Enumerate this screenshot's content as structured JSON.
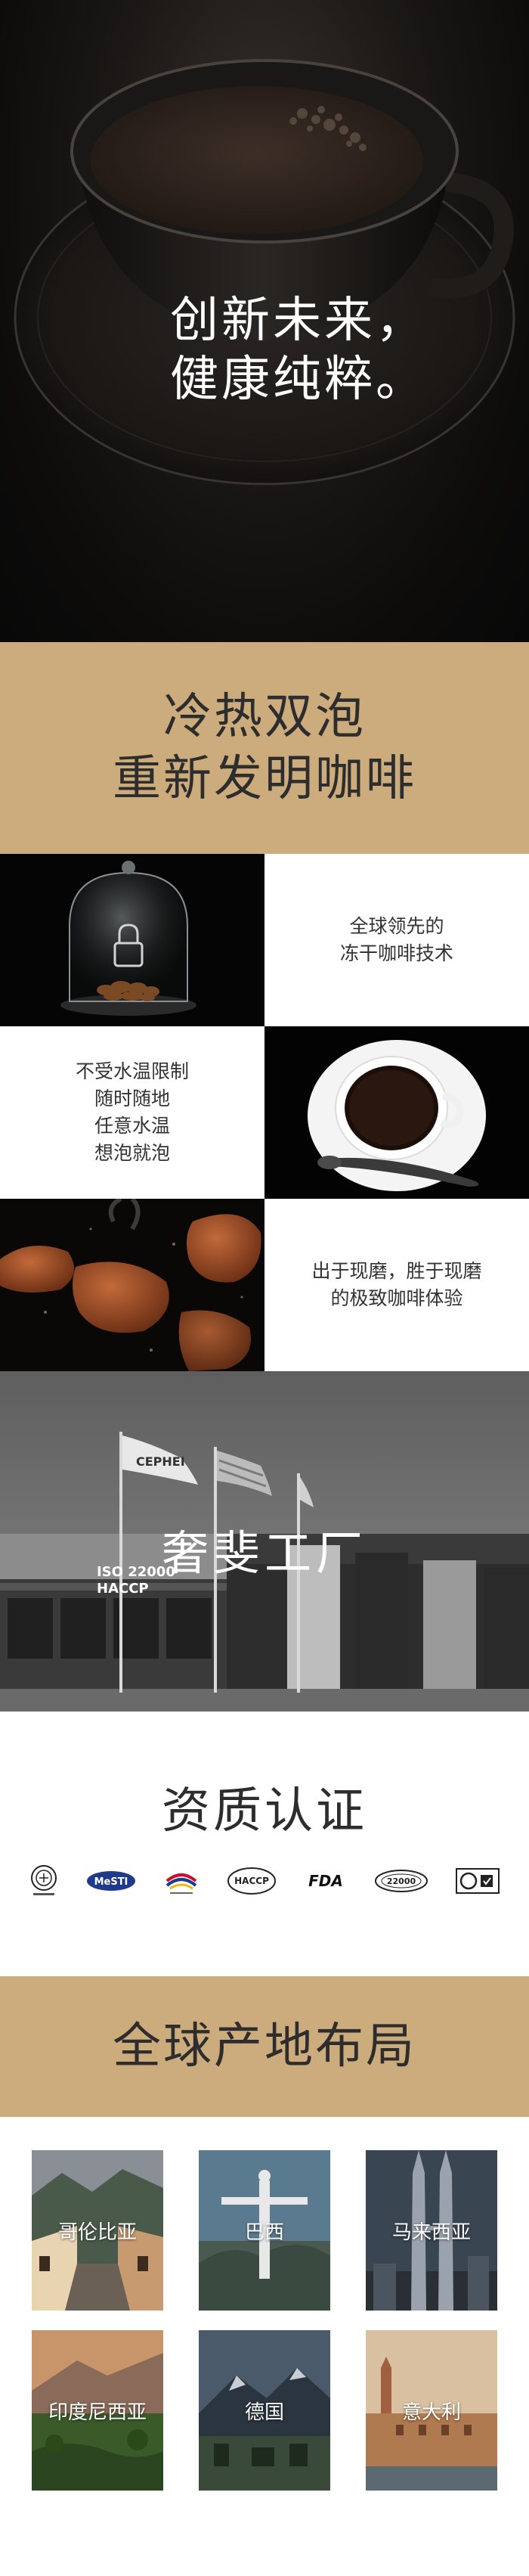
{
  "hero": {
    "title_line1": "创新未来，",
    "title_line2": "健康纯粹。"
  },
  "banner_cold_hot": {
    "line1": "冷热双泡",
    "line2": "重新发明咖啡"
  },
  "features": {
    "freeze_dry": {
      "line1": "全球领先的",
      "line2": "冻干咖啡技术"
    },
    "water_temp": {
      "line1": "不受水温限制",
      "line2": "随时随地",
      "line3": "任意水温",
      "line4": "想泡就泡"
    },
    "fresh_grind": {
      "line1": "出于现磨，胜于现磨",
      "line2": "的极致咖啡体验"
    }
  },
  "factory": {
    "title": "奢斐工厂",
    "iso_line1": "ISO 22000",
    "iso_line2": "HACCP",
    "flag_text": "CEPHEI"
  },
  "certification": {
    "title": "资质认证",
    "logos": {
      "mesti": "MeSTI",
      "haccp": "HACCP",
      "fda": "FDA",
      "iso": "22000"
    }
  },
  "global_layout": {
    "line1": "全球产地布局",
    "locations": [
      "哥伦比亚",
      "巴西",
      "马来西亚",
      "印度尼西亚",
      "德国",
      "意大利"
    ]
  },
  "colors": {
    "gold": "#ccab7c",
    "dark": "#0d0c0b"
  }
}
